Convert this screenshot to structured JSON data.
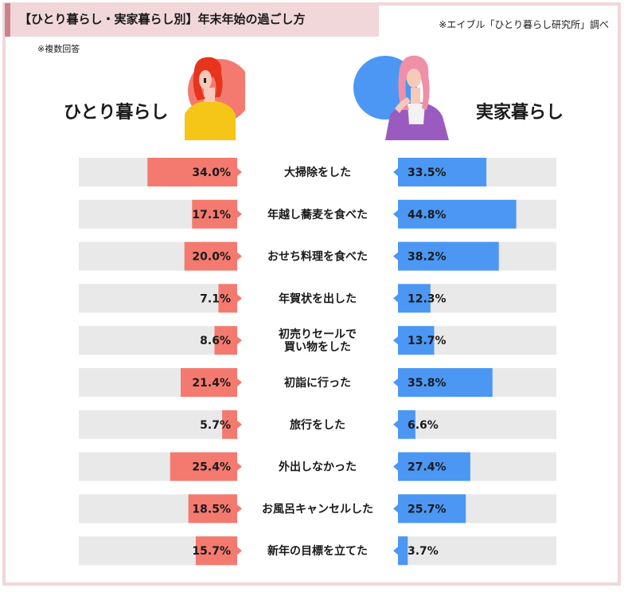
{
  "header": {
    "title": "【ひとり暮らし・実家暮らし別】年末年始の過ごし方",
    "source": "※エイブル「ひとり暮らし研究所」調べ",
    "note": "※複数回答"
  },
  "legend": {
    "left_label": "ひとり暮らし",
    "right_label": "実家暮らし"
  },
  "colors": {
    "left": "#f47a6f",
    "right": "#4b97f3",
    "track": "#e9e9e9",
    "title_band": "#f1d7da",
    "border": "#f1d7da"
  },
  "icons": {
    "left": "woman-red-hair-icon",
    "right": "woman-pink-hair-icon"
  },
  "chart_data": {
    "type": "bar",
    "title": "【ひとり暮らし・実家暮らし別】年末年始の過ごし方",
    "categories": [
      "大掃除をした",
      "年越し蕎麦を食べた",
      "おせち料理を食べた",
      "年賀状を出した",
      "初売りセールで\n買い物をした",
      "初詣に行った",
      "旅行をした",
      "外出しなかった",
      "お風呂キャンセルした",
      "新年の目標を立てた"
    ],
    "series": [
      {
        "name": "ひとり暮らし",
        "values": [
          34.0,
          17.1,
          20.0,
          7.1,
          8.6,
          21.4,
          5.7,
          25.4,
          18.5,
          15.7
        ],
        "labels": [
          "34.0%",
          "17.1%",
          "20.0%",
          "7.1%",
          "8.6%",
          "21.4%",
          "5.7%",
          "25.4%",
          "18.5%",
          "15.7%"
        ]
      },
      {
        "name": "実家暮らし",
        "values": [
          33.5,
          44.8,
          38.2,
          12.3,
          13.7,
          35.8,
          6.6,
          27.4,
          25.7,
          3.7
        ],
        "labels": [
          "33.5%",
          "44.8%",
          "38.2%",
          "12.3%",
          "13.7%",
          "35.8%",
          "6.6%",
          "27.4%",
          "25.7%",
          "3.7%"
        ]
      }
    ],
    "unit": "%",
    "xlim": [
      0,
      100
    ],
    "grid": false,
    "layout": "butterfly"
  }
}
